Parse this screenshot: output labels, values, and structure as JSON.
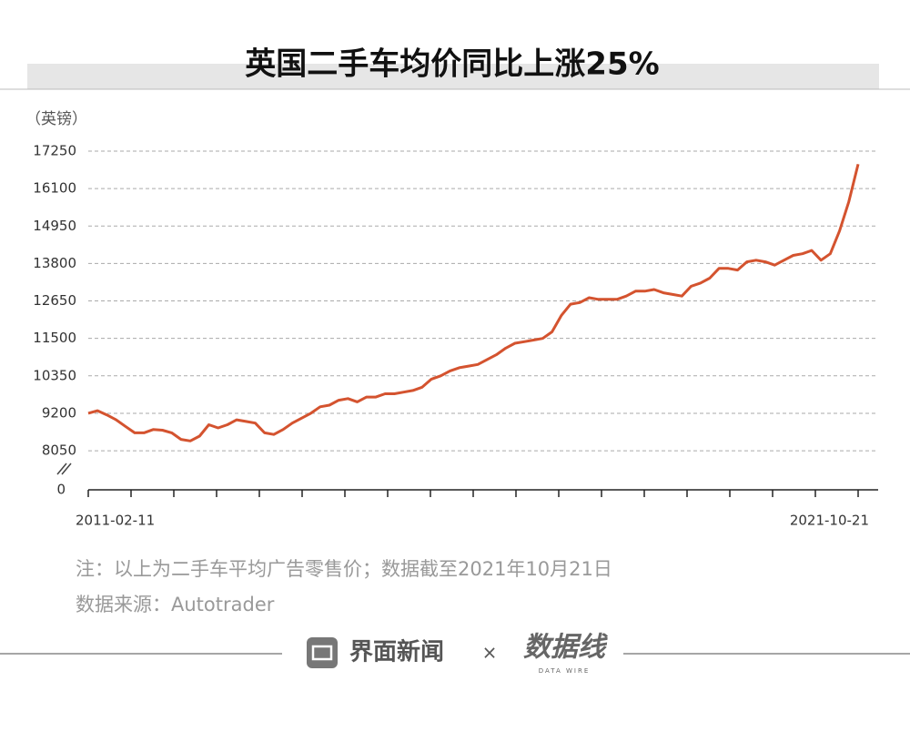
{
  "chart_data": {
    "type": "line",
    "title": "英国二手车均价同比上涨25%",
    "y_label": "（英镑）",
    "categories": [
      "2011-02-11",
      null,
      null,
      null,
      null,
      null,
      null,
      null,
      null,
      null,
      null,
      null,
      null,
      null,
      null,
      null,
      null,
      null,
      null,
      null,
      null,
      null,
      null,
      null,
      null,
      null,
      null,
      null,
      null,
      null,
      null,
      null,
      null,
      null,
      null,
      null,
      null,
      null,
      null,
      null,
      null,
      null,
      null,
      null,
      null,
      null,
      null,
      null,
      null,
      null,
      null,
      null,
      null,
      null,
      null,
      null,
      null,
      null,
      null,
      null,
      null,
      null,
      null,
      null,
      null,
      null,
      null,
      null,
      null,
      null,
      null,
      null,
      null,
      null,
      null,
      null,
      null,
      null,
      null,
      null,
      null,
      null,
      null,
      "2021-10-21"
    ],
    "values": [
      9200,
      9280,
      9150,
      9000,
      8800,
      8600,
      8600,
      8700,
      8680,
      8600,
      8400,
      8350,
      8500,
      8850,
      8750,
      8850,
      9000,
      8950,
      8900,
      8600,
      8550,
      8700,
      8900,
      9050,
      9200,
      9400,
      9450,
      9600,
      9650,
      9550,
      9700,
      9700,
      9800,
      9800,
      9850,
      9900,
      10000,
      10250,
      10350,
      10500,
      10600,
      10650,
      10700,
      10850,
      11000,
      11200,
      11350,
      11400,
      11450,
      11500,
      11700,
      12200,
      12550,
      12600,
      12750,
      12700,
      12700,
      12700,
      12800,
      12950,
      12950,
      13000,
      12900,
      12850,
      12800,
      13100,
      13200,
      13350,
      13650,
      13650,
      13600,
      13850,
      13900,
      13850,
      13750,
      13900,
      14050,
      14100,
      14200,
      13900,
      14100,
      14800,
      15700,
      16850
    ],
    "color": "#d4532f",
    "ylim": [
      6850,
      17250
    ],
    "yticks": [
      0,
      8050,
      9200,
      10350,
      11500,
      12650,
      13800,
      14950,
      16100,
      17250
    ],
    "axis_break": true,
    "grid": true
  },
  "notes": [
    "注：以上为二手车平均广告零售价；数据截至2021年10月21日",
    "数据来源：Autotrader"
  ],
  "footer": {
    "brand": "界面新闻",
    "times": "×",
    "partner": "数据线",
    "partner_sub": "DATA WIRE"
  }
}
